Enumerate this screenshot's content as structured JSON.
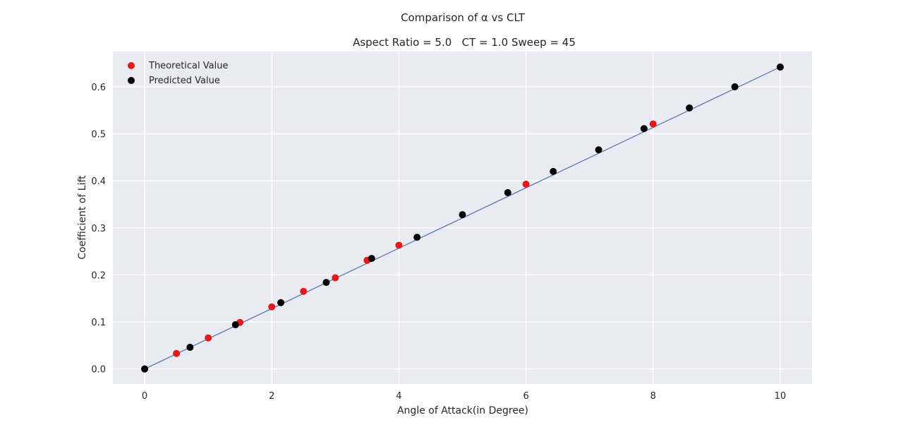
{
  "chart_data": {
    "type": "scatter",
    "title": "Comparison of α vs CLT",
    "subtitle": "Aspect Ratio = 5.0   CT = 1.0 Sweep = 45",
    "xlabel": "Angle of Attack(in Degree)",
    "ylabel": "Coefficient of Lift",
    "xlim": [
      -0.5,
      10.5
    ],
    "ylim": [
      -0.032,
      0.675
    ],
    "xticks": [
      0,
      2,
      4,
      6,
      8,
      10
    ],
    "yticks": [
      0.0,
      0.1,
      0.2,
      0.3,
      0.4,
      0.5,
      0.6
    ],
    "grid": true,
    "legend_position": "top-left",
    "line": {
      "x": [
        0,
        10
      ],
      "y": [
        0,
        0.642
      ],
      "color": "#4c72b0"
    },
    "series": [
      {
        "name": "Theoretical Value",
        "color": "#e31a1c",
        "x": [
          0,
          0.5,
          1.0,
          1.5,
          2.0,
          2.5,
          3.0,
          3.5,
          4.0,
          6.0,
          8.0,
          10.0
        ],
        "y": [
          0,
          0.033,
          0.066,
          0.099,
          0.132,
          0.165,
          0.194,
          0.231,
          0.263,
          0.393,
          0.521,
          0.642
        ]
      },
      {
        "name": "Predicted Value",
        "color": "#000000",
        "x": [
          0,
          0.714,
          1.429,
          2.143,
          2.857,
          3.571,
          4.286,
          5.0,
          5.714,
          6.429,
          7.143,
          7.857,
          8.571,
          9.286,
          10.0
        ],
        "y": [
          0,
          0.046,
          0.094,
          0.141,
          0.184,
          0.235,
          0.28,
          0.328,
          0.375,
          0.42,
          0.466,
          0.511,
          0.555,
          0.6,
          0.642
        ]
      }
    ]
  }
}
